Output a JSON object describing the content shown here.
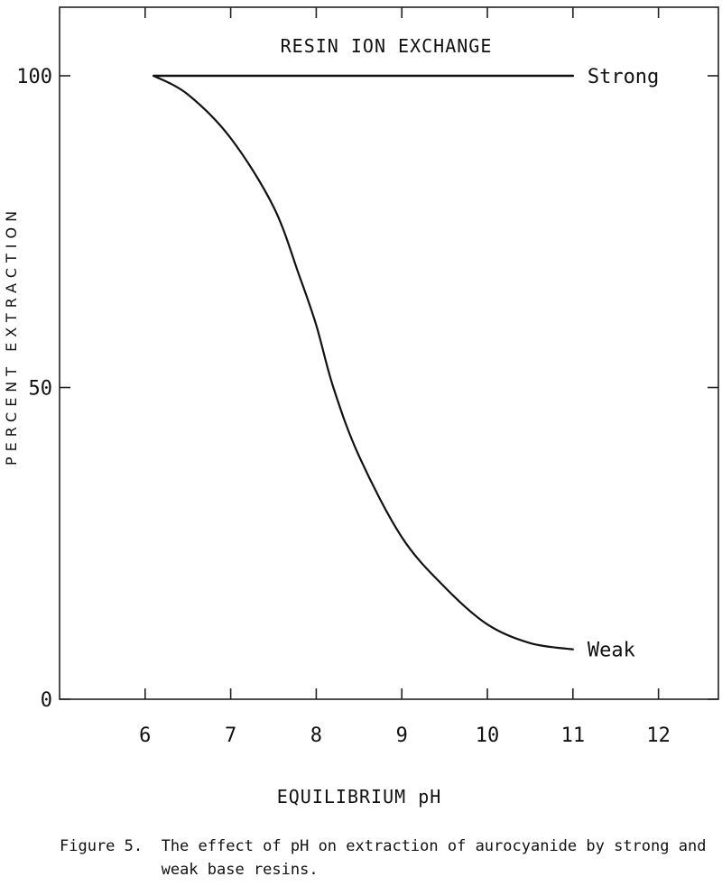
{
  "chart_data": {
    "type": "line",
    "title": "RESIN ION EXCHANGE",
    "xlabel": "EQUILIBRIUM pH",
    "ylabel": "PERCENT EXTRACTION",
    "xlim": [
      5,
      12.7
    ],
    "ylim": [
      0,
      111
    ],
    "x_ticks": [
      6,
      7,
      8,
      9,
      10,
      11,
      12
    ],
    "y_ticks": [
      0,
      50,
      100
    ],
    "grid": false,
    "series": [
      {
        "name": "Strong",
        "x": [
          6.1,
          11.0
        ],
        "y": [
          100,
          100
        ]
      },
      {
        "name": "Weak",
        "x": [
          6.1,
          6.5,
          7.0,
          7.5,
          7.8,
          8.0,
          8.2,
          8.5,
          9.0,
          9.5,
          10.0,
          10.5,
          11.0
        ],
        "y": [
          100,
          97,
          90,
          79,
          68,
          60,
          50,
          39,
          26,
          18,
          12,
          9,
          8
        ]
      }
    ]
  },
  "caption": {
    "text": "Figure 5.  The effect of pH on extraction of aurocyanide by strong and\n           weak base resins."
  }
}
